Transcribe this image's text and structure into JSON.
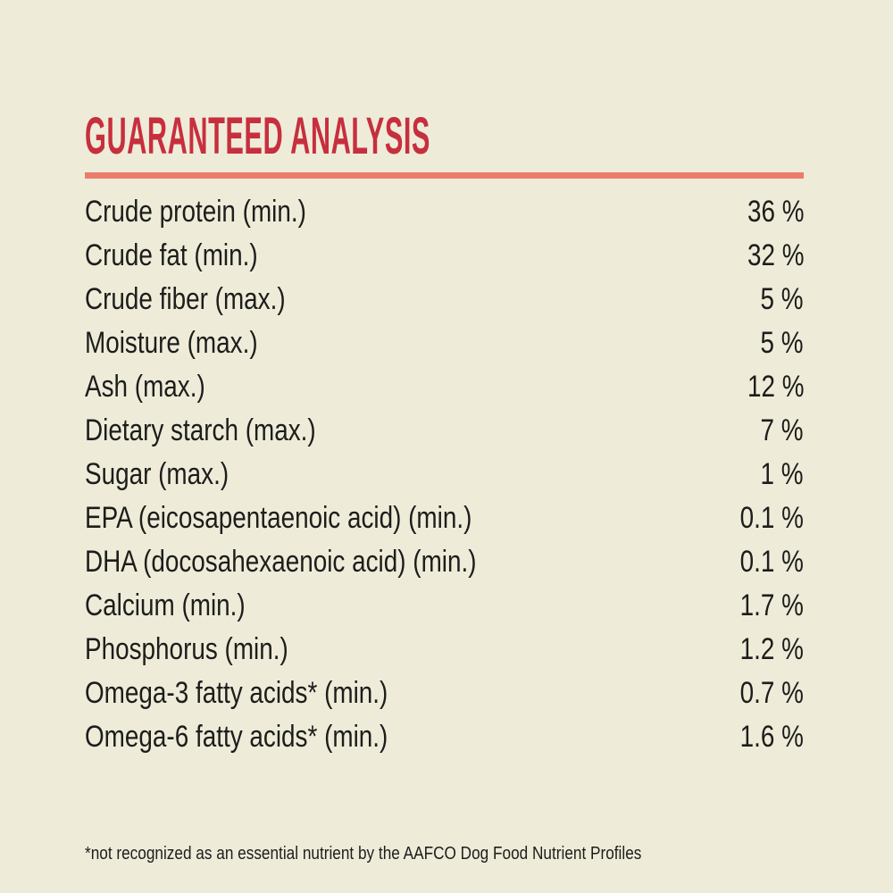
{
  "page": {
    "title": "GUARANTEED ANALYSIS",
    "footnote": "*not recognized as an essential nutrient by the AAFCO Dog Food Nutrient Profiles"
  },
  "colors": {
    "background": "#eeecd9",
    "title_red": "#c72f3e",
    "divider_salmon": "#e97c6c",
    "text_dark": "#1d1d1b"
  },
  "table": {
    "rows": [
      {
        "label": "Crude protein (min.)",
        "value": "36 %"
      },
      {
        "label": "Crude fat (min.)",
        "value": "32 %"
      },
      {
        "label": "Crude fiber (max.)",
        "value": "5 %"
      },
      {
        "label": "Moisture (max.)",
        "value": "5 %"
      },
      {
        "label": "Ash (max.)",
        "value": "12 %"
      },
      {
        "label": "Dietary starch (max.)",
        "value": "7 %"
      },
      {
        "label": "Sugar (max.)",
        "value": "1 %"
      },
      {
        "label": "EPA (eicosapentaenoic acid) (min.)",
        "value": "0.1 %"
      },
      {
        "label": "DHA (docosahexaenoic acid) (min.)",
        "value": "0.1 %"
      },
      {
        "label": "Calcium (min.)",
        "value": "1.7 %"
      },
      {
        "label": "Phosphorus (min.)",
        "value": "1.2 %"
      },
      {
        "label": "Omega-3 fatty acids* (min.)",
        "value": "0.7 %"
      },
      {
        "label": "Omega-6 fatty acids* (min.)",
        "value": "1.6 %"
      }
    ]
  }
}
